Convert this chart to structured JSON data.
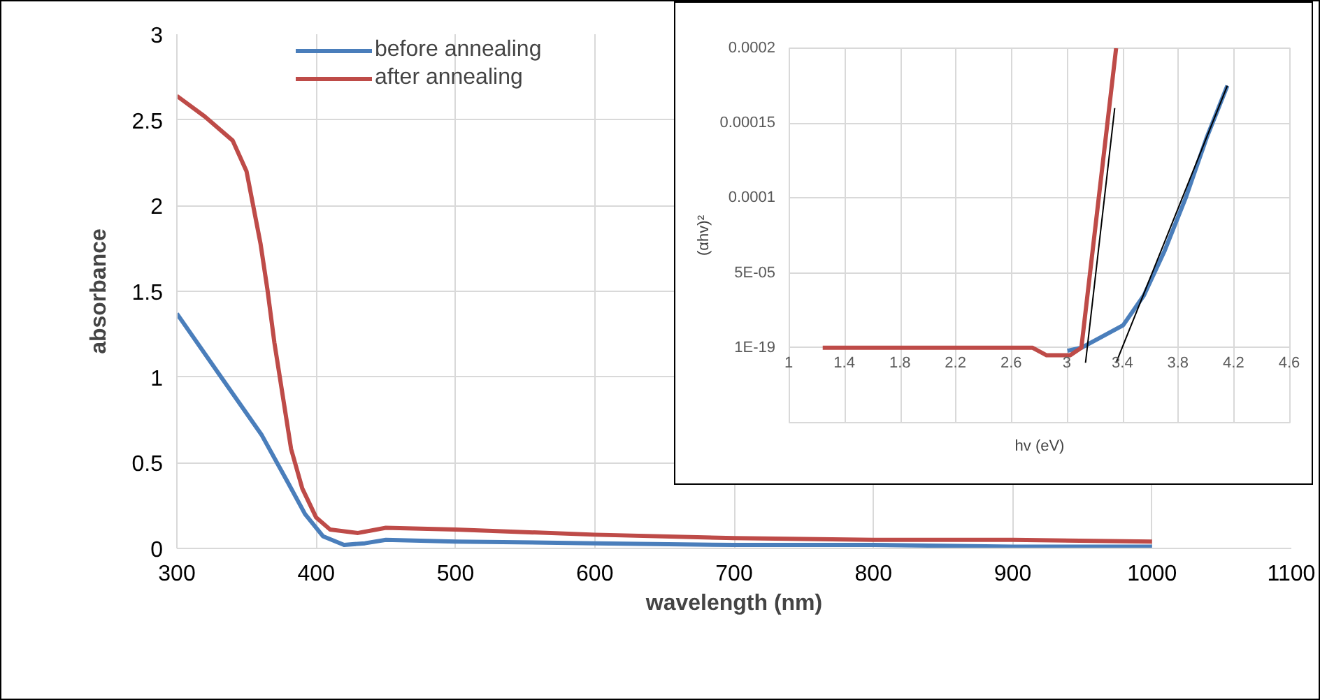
{
  "chart_data": [
    {
      "type": "line",
      "xlabel": "wavelength (nm)",
      "ylabel": "absorbance",
      "xlim": [
        300,
        1100
      ],
      "ylim": [
        0,
        3
      ],
      "xticks": [
        300,
        400,
        500,
        600,
        700,
        800,
        900,
        1000,
        1100
      ],
      "yticks": [
        0,
        0.5,
        1,
        1.5,
        2,
        2.5,
        3
      ],
      "grid": true,
      "legend": "top left",
      "series": [
        {
          "name": "before annealing",
          "color": "#4a7ebb",
          "x": [
            300,
            330,
            361,
            380,
            392,
            405,
            420,
            435,
            450,
            500,
            600,
            700,
            800,
            900,
            1000
          ],
          "values": [
            1.37,
            1.02,
            0.66,
            0.38,
            0.2,
            0.07,
            0.02,
            0.03,
            0.05,
            0.04,
            0.03,
            0.02,
            0.02,
            0.01,
            0.01
          ]
        },
        {
          "name": "after annealing",
          "color": "#be4b48",
          "x": [
            300,
            320,
            340,
            350,
            360,
            365,
            370,
            382,
            390,
            400,
            410,
            430,
            450,
            500,
            600,
            700,
            800,
            900,
            1000
          ],
          "values": [
            2.64,
            2.52,
            2.38,
            2.2,
            1.78,
            1.51,
            1.2,
            0.58,
            0.35,
            0.18,
            0.11,
            0.09,
            0.12,
            0.11,
            0.08,
            0.06,
            0.05,
            0.05,
            0.04
          ]
        }
      ]
    },
    {
      "type": "line",
      "xlabel": "hv (eV)",
      "ylabel": "(αhv)²",
      "xlim": [
        1,
        4.6
      ],
      "ylim": [
        -5e-05,
        0.0002
      ],
      "xticks": [
        1,
        1.4,
        1.8,
        2.2,
        2.6,
        3,
        3.4,
        3.8,
        4.2,
        4.6
      ],
      "yticks": [
        {
          "value": -5e-05,
          "label": null
        },
        {
          "value": 0,
          "label": "1E-19"
        },
        {
          "value": 5e-05,
          "label": "5E-05"
        },
        {
          "value": 0.0001,
          "label": "0.0001"
        },
        {
          "value": 0.00015,
          "label": "0.00015"
        },
        {
          "value": 0.0002,
          "label": "0.0002"
        }
      ],
      "grid": true,
      "series": [
        {
          "color": "#4a7ebb",
          "x": [
            3.0,
            3.1,
            3.2,
            3.3,
            3.4,
            3.55,
            3.7,
            3.85,
            4.0,
            4.15
          ],
          "values": [
            -2e-06,
            0,
            5e-06,
            1e-05,
            1.5e-05,
            3.5e-05,
            6.5e-05,
            0.0001,
            0.00014,
            0.000175
          ]
        },
        {
          "color": "#be4b48",
          "x": [
            1.24,
            2.75,
            2.85,
            2.95,
            3.02,
            3.1,
            3.35
          ],
          "values": [
            0,
            0,
            -5e-06,
            -5e-06,
            -5e-06,
            0,
            0.0002
          ]
        },
        {
          "color": "#000000",
          "x": [
            3.13,
            3.34
          ],
          "values": [
            -1e-05,
            0.00016
          ]
        },
        {
          "color": "#000000",
          "x": [
            3.35,
            4.15
          ],
          "values": [
            -1e-05,
            0.000175
          ]
        }
      ]
    }
  ]
}
